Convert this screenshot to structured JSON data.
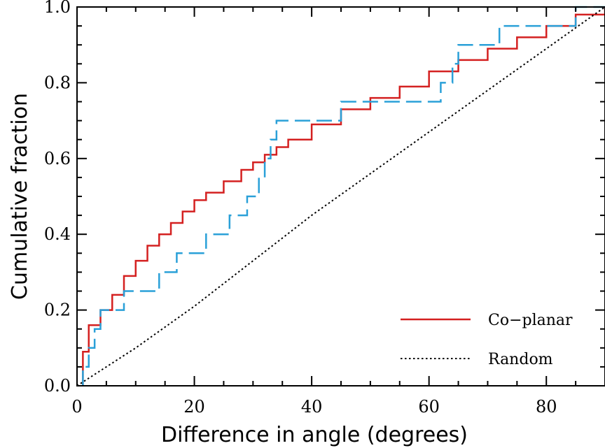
{
  "chart_data": {
    "type": "line",
    "title": "",
    "xlabel": "Difference in angle (degrees)",
    "ylabel": "Cumulative fraction",
    "xlim": [
      0,
      90
    ],
    "ylim": [
      0,
      1
    ],
    "x_ticks": [
      0,
      20,
      40,
      60,
      80
    ],
    "x_tick_labels": [
      "0",
      "20",
      "40",
      "60",
      "80"
    ],
    "y_ticks": [
      0,
      0.2,
      0.4,
      0.6,
      0.8,
      1.0
    ],
    "y_tick_labels": [
      "0.0",
      "0.2",
      "0.4",
      "0.6",
      "0.8",
      "1.0"
    ],
    "grid": false,
    "legend_position": "bottom-right",
    "series": [
      {
        "name": "Co−planar",
        "style": "solid-step",
        "color": "#d42020",
        "x": [
          1,
          2,
          4,
          6,
          8,
          10,
          12,
          14,
          16,
          18,
          20,
          22,
          25,
          28,
          30,
          32,
          34,
          36,
          40,
          45,
          50,
          55,
          60,
          65,
          70,
          75,
          80,
          85,
          90
        ],
        "y": [
          0.09,
          0.16,
          0.2,
          0.24,
          0.29,
          0.33,
          0.37,
          0.4,
          0.43,
          0.46,
          0.49,
          0.51,
          0.54,
          0.57,
          0.59,
          0.61,
          0.63,
          0.65,
          0.69,
          0.73,
          0.76,
          0.79,
          0.83,
          0.86,
          0.89,
          0.92,
          0.95,
          0.98,
          1.0
        ]
      },
      {
        "name": "",
        "style": "dashed-step",
        "color": "#2aa0d8",
        "x": [
          1,
          2,
          3,
          4,
          8,
          14,
          17,
          22,
          26,
          29,
          31,
          32,
          33,
          34,
          45,
          62,
          64,
          65,
          72,
          85,
          90
        ],
        "y": [
          0.05,
          0.1,
          0.15,
          0.2,
          0.25,
          0.3,
          0.35,
          0.4,
          0.45,
          0.5,
          0.55,
          0.6,
          0.65,
          0.7,
          0.75,
          0.8,
          0.85,
          0.9,
          0.95,
          1.0,
          1.0
        ]
      },
      {
        "name": "Random",
        "style": "dotted",
        "color": "#000000",
        "x": [
          0,
          10,
          20,
          30,
          40,
          50,
          60,
          70,
          80,
          90
        ],
        "y": [
          0.0,
          0.1,
          0.21,
          0.33,
          0.45,
          0.56,
          0.67,
          0.78,
          0.89,
          1.0
        ]
      }
    ]
  }
}
